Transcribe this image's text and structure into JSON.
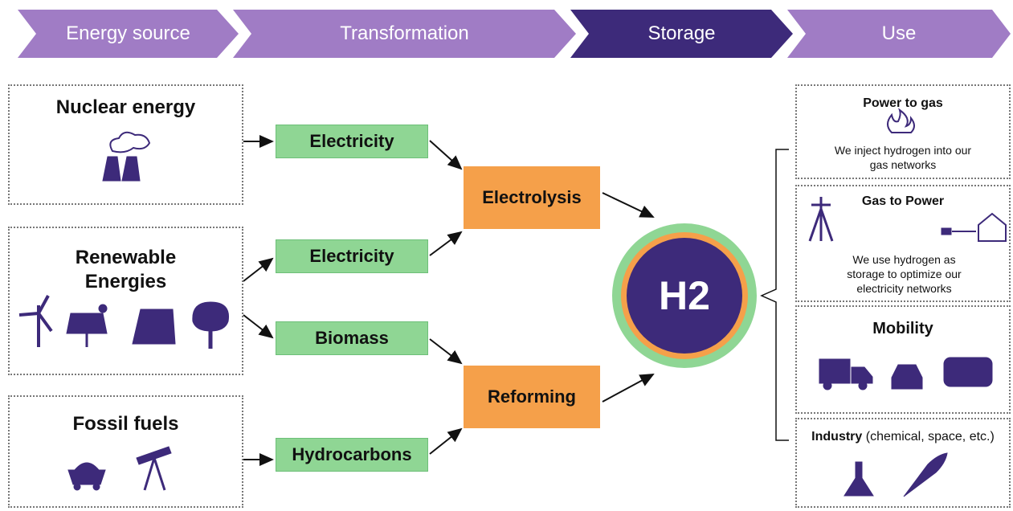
{
  "header": {
    "stages": [
      "Energy source",
      "Transformation",
      "Storage",
      "Use"
    ]
  },
  "sources": [
    {
      "label": "Nuclear energy"
    },
    {
      "label": "Renewable Energies"
    },
    {
      "label": "Fossil fuels"
    }
  ],
  "carriers": [
    "Electricity",
    "Electricity",
    "Biomass",
    "Hydrocarbons"
  ],
  "processes": [
    "Electrolysis",
    "Reforming"
  ],
  "storage": {
    "label": "H2"
  },
  "uses": [
    {
      "title": "Power to gas",
      "text": "We inject hydrogen into our gas networks"
    },
    {
      "title": "Gas to Power",
      "text": "We use hydrogen as storage to optimize our electricity networks"
    },
    {
      "title": "Mobility"
    },
    {
      "title": "Industry",
      "detail": "(chemical, space, etc.)"
    }
  ]
}
